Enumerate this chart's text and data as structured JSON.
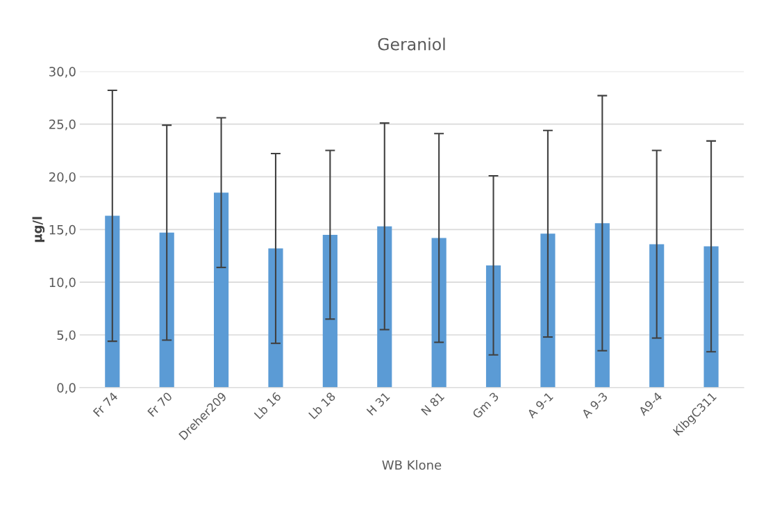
{
  "chart_data": {
    "type": "bar",
    "title": "Geraniol",
    "xlabel": "WB Klone",
    "ylabel": "µg/l",
    "categories": [
      "Fr 74",
      "Fr 70",
      "Dreher209",
      "Lb 16",
      "Lb 18",
      "H 31",
      "N 81",
      "Gm 3",
      "A 9-1",
      "A 9-3",
      "A9-4",
      "KlbgC311"
    ],
    "values": [
      16.3,
      14.7,
      18.5,
      13.2,
      14.5,
      15.3,
      14.2,
      11.6,
      14.6,
      15.6,
      13.6,
      13.4
    ],
    "errors": [
      11.9,
      10.2,
      7.1,
      9.0,
      8.0,
      9.8,
      9.9,
      8.5,
      9.8,
      12.1,
      8.9,
      10.0
    ],
    "color": "#5b9bd5",
    "ylim": [
      0,
      30
    ],
    "yticks": [
      {
        "value": 0,
        "label": "0,0"
      },
      {
        "value": 5,
        "label": "5,0"
      },
      {
        "value": 10,
        "label": "10,0"
      },
      {
        "value": 15,
        "label": "15,0"
      },
      {
        "value": 20,
        "label": "20,0"
      },
      {
        "value": 25,
        "label": "25,0"
      },
      {
        "value": 30,
        "label": "30,0"
      }
    ],
    "grid": "y",
    "legend": false
  }
}
